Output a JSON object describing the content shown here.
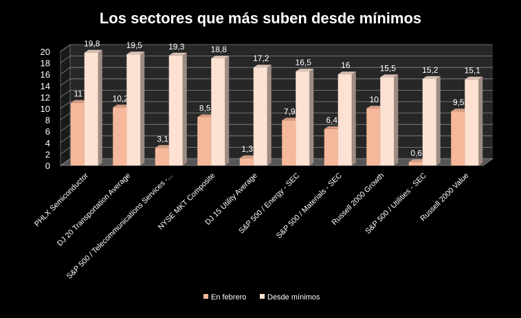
{
  "chart_data": {
    "type": "bar",
    "title": "Los sectores que más suben desde mínimos",
    "xlabel": "",
    "ylabel": "",
    "ylim": [
      0,
      20
    ],
    "yticks": [
      0,
      2,
      4,
      6,
      8,
      10,
      12,
      14,
      16,
      18,
      20
    ],
    "grid": true,
    "legend_position": "bottom",
    "categories": [
      "PHLX Semiconductor",
      "DJ 20 Transportation Average",
      "S&P 500 / Telecommunications Services -...",
      "NYSE MKT Composite",
      "DJ 15 Utility Average",
      "S&P 500 / Energy - SEC",
      "S&P 500 / Materials - SEC",
      "Russell 2000 Growth",
      "S&P 500 / Utilities - SEC",
      "Russell 2000 Value"
    ],
    "series": [
      {
        "name": "En febrero",
        "values": [
          11,
          10.2,
          3.1,
          8.5,
          1.3,
          7.9,
          6.4,
          10,
          0.6,
          9.5
        ],
        "labels": [
          "11",
          "10,2",
          "3,1",
          "8,5",
          "1,3",
          "7,9",
          "6,4",
          "10",
          "0,6",
          "9,5"
        ],
        "color": "#f6b89a"
      },
      {
        "name": "Desde mínimos",
        "values": [
          19.8,
          19.5,
          19.3,
          18.8,
          17.2,
          16.5,
          16,
          15.5,
          15.2,
          15.1
        ],
        "labels": [
          "19,8",
          "19,5",
          "19,3",
          "18,8",
          "17,2",
          "16,5",
          "16",
          "15,5",
          "15,2",
          "15,1"
        ],
        "color": "#fde1d2"
      }
    ]
  }
}
